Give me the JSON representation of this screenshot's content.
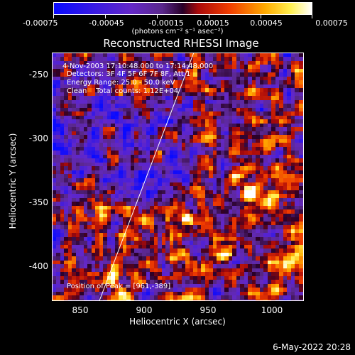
{
  "colorbar": {
    "ticks": [
      "-0.00075",
      "-0.00045",
      "-0.00015",
      "0.00015",
      "0.00045",
      "0.00075"
    ],
    "units": "(photons cm⁻² s⁻¹ asec⁻²)"
  },
  "plot": {
    "title": "Reconstructed RHESSI Image",
    "annotations": {
      "time": "4-Nov-2003 17:10:48.000 to 17:14:48.000",
      "detectors": "Detectors: 3F 4F 5F 6F 7F 8F, Att 1",
      "energy": "Energy Range: 25.0 - 50.0 keV",
      "clean": "Clean    Total counts: 1.12E+04"
    },
    "peak": "Position of Peak = [961,-389]",
    "xlabel": "Heliocentric X (arcsec)",
    "ylabel": "Heliocentric Y (arcsec)",
    "xticks": [
      "850",
      "900",
      "950",
      "1000"
    ],
    "yticks": [
      "-250",
      "-300",
      "-350",
      "-400"
    ]
  },
  "chart_data": {
    "type": "heatmap",
    "title": "Reconstructed RHESSI Image",
    "xlabel": "Heliocentric X (arcsec)",
    "ylabel": "Heliocentric Y (arcsec)",
    "xlim": [
      830,
      1022
    ],
    "ylim": [
      -424,
      -232
    ],
    "zlim": [
      -0.00075,
      0.00075
    ],
    "colormap": "blue-purple-red-yellow-white",
    "limb_line": {
      "x": [
        866,
        938
      ],
      "y": [
        -424,
        -232
      ]
    }
  },
  "timestamp": "6-May-2022 20:28"
}
